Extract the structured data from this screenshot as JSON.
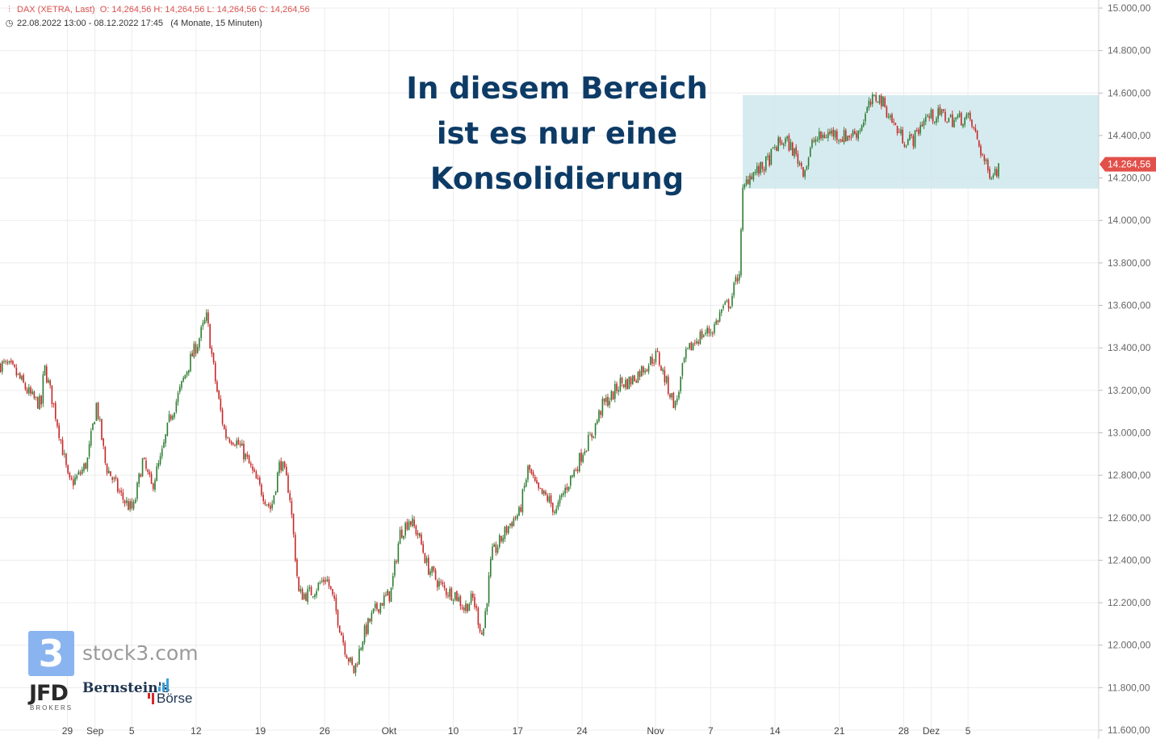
{
  "header": {
    "instrument": "DAX (XETRA, Last)",
    "ohlc": "O: 14,264,56   H: 14,264,56   L: 14,264,56   C: 14,264,56",
    "range": "22.08.2022 13:00 - 08.12.2022 17:45",
    "range_detail": "(4 Monate, 15 Minuten)"
  },
  "annotation": {
    "line1": "In diesem Bereich",
    "line2": "ist es nur eine",
    "line3": "Konsolidierung"
  },
  "logos": {
    "stock3_digit": "3",
    "stock3_text": "stock3.com",
    "jfd": "JFD",
    "jfd_sub": "BROKERS",
    "bernstein": "Bernstein's",
    "boerse": "Börse"
  },
  "colors": {
    "up": "#2e7d32",
    "down": "#c62828",
    "zone": "#cfe7ec",
    "price_tag": "#e2504a",
    "annotation": "#0d3b66"
  },
  "chart_data": {
    "type": "candlestick",
    "title": "",
    "xlabel": "",
    "ylabel": "",
    "ylim": [
      11600,
      15000
    ],
    "y_ticks": [
      "15.000,00",
      "14.800,00",
      "14.600,00",
      "14.400,00",
      "14.200,00",
      "14.000,00",
      "13.800,00",
      "13.600,00",
      "13.400,00",
      "13.200,00",
      "13.000,00",
      "12.800,00",
      "12.600,00",
      "12.400,00",
      "12.200,00",
      "12.000,00",
      "11.800,00",
      "11.600,00"
    ],
    "y_tick_values": [
      15000,
      14800,
      14600,
      14400,
      14200,
      14000,
      13800,
      13600,
      13400,
      13200,
      13000,
      12800,
      12600,
      12400,
      12200,
      12000,
      11800,
      11600
    ],
    "x_ticks": [
      "29",
      "Sep",
      "5",
      "12",
      "19",
      "26",
      "Okt",
      "10",
      "17",
      "24",
      "Nov",
      "7",
      "14",
      "21",
      "28",
      "Dez",
      "5"
    ],
    "x_tick_dates": [
      "2022-08-29",
      "2022-09-01",
      "2022-09-05",
      "2022-09-12",
      "2022-09-19",
      "2022-09-26",
      "2022-10-03",
      "2022-10-10",
      "2022-10-17",
      "2022-10-24",
      "2022-11-01",
      "2022-11-07",
      "2022-11-14",
      "2022-11-21",
      "2022-11-28",
      "2022-12-01",
      "2022-12-05"
    ],
    "x_range": [
      "2022-08-22",
      "2022-12-08"
    ],
    "path": [
      [
        "2022-08-22",
        13320
      ],
      [
        "2022-08-24",
        13230
      ],
      [
        "2022-08-26",
        13150
      ],
      [
        "2022-08-26",
        13320
      ],
      [
        "2022-08-29",
        12760
      ],
      [
        "2022-08-31",
        12880
      ],
      [
        "2022-09-01",
        13120
      ],
      [
        "2022-09-02",
        12820
      ],
      [
        "2022-09-05",
        12650
      ],
      [
        "2022-09-06",
        12850
      ],
      [
        "2022-09-07",
        12720
      ],
      [
        "2022-09-08",
        12880
      ],
      [
        "2022-09-09",
        13100
      ],
      [
        "2022-09-12",
        13400
      ],
      [
        "2022-09-13",
        13550
      ],
      [
        "2022-09-14",
        13250
      ],
      [
        "2022-09-15",
        13000
      ],
      [
        "2022-09-16",
        12950
      ],
      [
        "2022-09-19",
        12750
      ],
      [
        "2022-09-20",
        12650
      ],
      [
        "2022-09-21",
        12850
      ],
      [
        "2022-09-22",
        12700
      ],
      [
        "2022-09-23",
        12250
      ],
      [
        "2022-09-26",
        12300
      ],
      [
        "2022-09-27",
        12150
      ],
      [
        "2022-09-28",
        12000
      ],
      [
        "2022-09-29",
        11900
      ],
      [
        "2022-09-30",
        12050
      ],
      [
        "2022-10-03",
        12250
      ],
      [
        "2022-10-04",
        12550
      ],
      [
        "2022-10-05",
        12600
      ],
      [
        "2022-10-06",
        12500
      ],
      [
        "2022-10-07",
        12350
      ],
      [
        "2022-10-10",
        12250
      ],
      [
        "2022-10-11",
        12150
      ],
      [
        "2022-10-12",
        12200
      ],
      [
        "2022-10-13",
        12050
      ],
      [
        "2022-10-14",
        12450
      ],
      [
        "2022-10-17",
        12600
      ],
      [
        "2022-10-18",
        12850
      ],
      [
        "2022-10-19",
        12750
      ],
      [
        "2022-10-20",
        12700
      ],
      [
        "2022-10-21",
        12600
      ],
      [
        "2022-10-24",
        12950
      ],
      [
        "2022-10-25",
        13000
      ],
      [
        "2022-10-26",
        13100
      ],
      [
        "2022-10-27",
        13150
      ],
      [
        "2022-10-28",
        13250
      ],
      [
        "2022-10-31",
        13300
      ],
      [
        "2022-11-01",
        13350
      ],
      [
        "2022-11-02",
        13250
      ],
      [
        "2022-11-03",
        13150
      ],
      [
        "2022-11-04",
        13350
      ],
      [
        "2022-11-07",
        13500
      ],
      [
        "2022-11-08",
        13600
      ],
      [
        "2022-11-09",
        13620
      ],
      [
        "2022-11-10",
        13750
      ],
      [
        "2022-11-10",
        14100
      ],
      [
        "2022-11-11",
        14200
      ],
      [
        "2022-11-14",
        14350
      ],
      [
        "2022-11-15",
        14350
      ],
      [
        "2022-11-16",
        14300
      ],
      [
        "2022-11-17",
        14250
      ],
      [
        "2022-11-18",
        14400
      ],
      [
        "2022-11-21",
        14380
      ],
      [
        "2022-11-22",
        14420
      ],
      [
        "2022-11-23",
        14450
      ],
      [
        "2022-11-24",
        14530
      ],
      [
        "2022-11-25",
        14560
      ],
      [
        "2022-11-28",
        14400
      ],
      [
        "2022-11-29",
        14380
      ],
      [
        "2022-11-30",
        14450
      ],
      [
        "2022-12-01",
        14480
      ],
      [
        "2022-12-02",
        14520
      ],
      [
        "2022-12-05",
        14450
      ],
      [
        "2022-12-06",
        14350
      ],
      [
        "2022-12-07",
        14250
      ],
      [
        "2022-12-08",
        14264.56
      ]
    ],
    "lows": [
      [
        "2022-08-29",
        12760
      ],
      [
        "2022-09-06",
        12610
      ],
      [
        "2022-09-29",
        11860
      ],
      [
        "2022-10-13",
        12010
      ],
      [
        "2022-11-03",
        13030
      ],
      [
        "2022-11-21",
        14150
      ],
      [
        "2022-12-07",
        14200
      ]
    ],
    "highs": [
      [
        "2022-09-13",
        13570
      ],
      [
        "2022-10-05",
        12670
      ],
      [
        "2022-11-24",
        14580
      ],
      [
        "2022-12-02",
        14590
      ]
    ],
    "consolidation_zone": {
      "from": "2022-11-11",
      "to": "2022-12-08",
      "low": 14150,
      "high": 14590
    },
    "last_price": 14264.56,
    "last_price_label": "14.264,56",
    "grid": true,
    "legend": "none"
  }
}
